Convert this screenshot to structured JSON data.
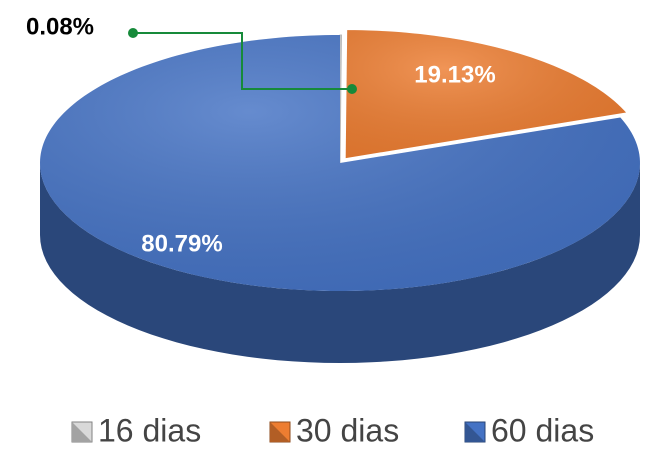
{
  "chart_data": {
    "type": "pie",
    "categories": [
      "16 dias",
      "30 dias",
      "60 dias"
    ],
    "values": [
      0.08,
      19.13,
      80.79
    ],
    "value_labels": [
      "0.08%",
      "19.13%",
      "80.79%"
    ],
    "colors": [
      "#d9d9d9",
      "#ed7d31",
      "#4472c4"
    ],
    "legend": "bottom"
  }
}
